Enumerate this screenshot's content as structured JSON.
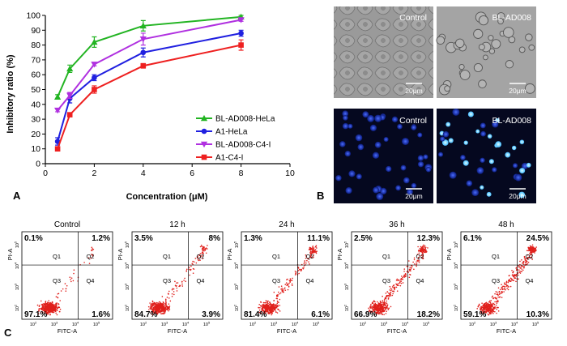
{
  "panel_labels": {
    "a": "A",
    "b": "B",
    "c": "C"
  },
  "chart_data": [
    {
      "type": "line",
      "xlabel": "Concentration (μM)",
      "ylabel": "Inhibitory ratio (%)",
      "xlim": [
        0,
        10
      ],
      "ylim": [
        0,
        100
      ],
      "xticks": [
        0,
        2,
        4,
        6,
        8,
        10
      ],
      "yticks": [
        0,
        10,
        20,
        30,
        40,
        50,
        60,
        70,
        80,
        90,
        100
      ],
      "legend_position": "lower-right",
      "x": [
        0.5,
        1,
        2,
        4,
        8
      ],
      "series": [
        {
          "name": "BL-AD008-HeLa",
          "color": "#22b422",
          "marker": "triangle-up",
          "values": [
            45,
            64,
            82,
            93,
            99
          ],
          "errors": [
            1.5,
            2.5,
            3.5,
            3.5,
            1
          ]
        },
        {
          "name": "A1-HeLa",
          "color": "#2020e0",
          "marker": "circle",
          "values": [
            15,
            44,
            58,
            75,
            88
          ],
          "errors": [
            2.5,
            3,
            2,
            3,
            2
          ]
        },
        {
          "name": "BL-AD008-C4-I",
          "color": "#b030e0",
          "marker": "triangle-down",
          "values": [
            36,
            46,
            67,
            84,
            97
          ],
          "errors": [
            1,
            2,
            1,
            4,
            1
          ]
        },
        {
          "name": "A1-C4-I",
          "color": "#ee2020",
          "marker": "square",
          "values": [
            10,
            33,
            50,
            66,
            80
          ],
          "errors": [
            1,
            1,
            2.5,
            1.5,
            3.5
          ]
        }
      ]
    },
    {
      "type": "scatter",
      "xlabel": "FITC-A",
      "ylabel": "PI-A",
      "quadrant_names": [
        "Q1",
        "Q2",
        "Q3",
        "Q4"
      ],
      "x_tick_exponents": [
        "2",
        "3",
        "4",
        "5"
      ],
      "y_tick_exponents": [
        "2",
        "3",
        "4",
        "5"
      ],
      "tick_base": "10",
      "panels": [
        {
          "title": "Control",
          "q1": "0.1%",
          "q2": "1.2%",
          "q3": "97.1%",
          "q4": "1.6%"
        },
        {
          "title": "12 h",
          "q1": "3.5%",
          "q2": "8%",
          "q3": "84.7%",
          "q4": "3.9%"
        },
        {
          "title": "24 h",
          "q1": "1.3%",
          "q2": "11.1%",
          "q3": "81.4%",
          "q4": "6.1%"
        },
        {
          "title": "36 h",
          "q1": "2.5%",
          "q2": "12.3%",
          "q3": "66.9%",
          "q4": "18.2%"
        },
        {
          "title": "48 h",
          "q1": "6.1%",
          "q2": "24.5%",
          "q3": "59.1%",
          "q4": "10.3%"
        }
      ]
    }
  ],
  "microscopy": {
    "panels": [
      {
        "label": "Control",
        "mode": "brightfield",
        "stained": 0
      },
      {
        "label": "BL-AD008",
        "mode": "brightfield",
        "stained": 0
      },
      {
        "label": "Control",
        "mode": "fluorescence",
        "stained": 0
      },
      {
        "label": "BL-AD008",
        "mode": "fluorescence",
        "stained": 1
      }
    ],
    "scale_bar": "20μm"
  }
}
